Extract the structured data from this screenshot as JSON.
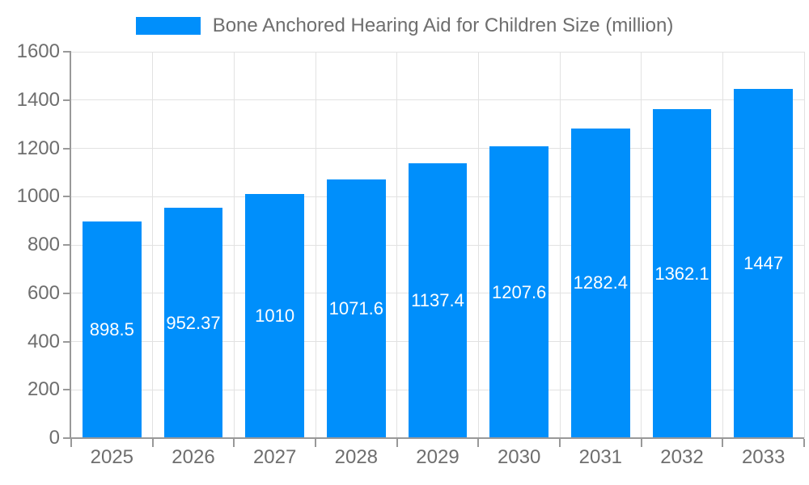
{
  "chart_data": {
    "type": "bar",
    "title": "Bone Anchored Hearing Aid for Children Size (million)",
    "categories": [
      "2025",
      "2026",
      "2027",
      "2028",
      "2029",
      "2030",
      "2031",
      "2032",
      "2033"
    ],
    "series": [
      {
        "name": "Bone Anchored Hearing Aid for Children Size (million)",
        "values": [
          898.5,
          952.37,
          1010,
          1071.6,
          1137.4,
          1207.6,
          1282.4,
          1362.1,
          1447
        ],
        "color": "#008FFB"
      }
    ],
    "value_labels": [
      "898.5",
      "952.37",
      "1010",
      "1071.6",
      "1137.4",
      "1207.6",
      "1282.4",
      "1362.1",
      "1447"
    ],
    "xlabel": "",
    "ylabel": "",
    "ylim": [
      0,
      1600
    ],
    "ytick_step": 200,
    "ytick_labels": [
      "0",
      "200",
      "400",
      "600",
      "800",
      "1000",
      "1200",
      "1400",
      "1600"
    ],
    "grid": true,
    "legend_position": "top",
    "colors": {
      "bar": "#008FFB",
      "grid": "#e2e2e2",
      "axis": "#999999",
      "tick_text": "#6e6e6e",
      "bar_label": "#ffffff",
      "background": "#ffffff"
    }
  }
}
